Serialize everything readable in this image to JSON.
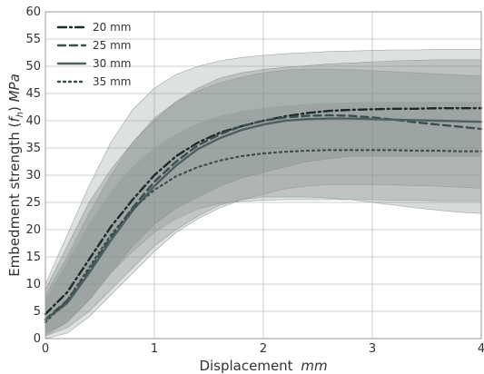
{
  "chart_data": {
    "type": "line",
    "xlabel_text": "Displacement ",
    "xlabel_unit": "mm",
    "ylabel_text": "Embedment strength (",
    "ylabel_sym": "f",
    "ylabel_sub": "h",
    "ylabel_mid": ") ",
    "ylabel_unit": "MPa",
    "xlim": [
      0,
      4
    ],
    "ylim": [
      0,
      60
    ],
    "xticks": [
      0,
      1,
      2,
      3,
      4
    ],
    "yticks": [
      0,
      5,
      10,
      15,
      20,
      25,
      30,
      35,
      40,
      45,
      50,
      55,
      60
    ],
    "grid": true,
    "legend_position": "top-left",
    "series": [
      {
        "name": "20 mm",
        "color": "#1f2a28",
        "dash": "dashdot",
        "x": [
          0,
          0.2,
          0.4,
          0.6,
          0.8,
          1.0,
          1.2,
          1.4,
          1.6,
          1.8,
          2.0,
          2.2,
          2.4,
          2.6,
          2.8,
          3.0,
          3.2,
          3.4,
          3.6,
          3.8,
          4.0
        ],
        "y": [
          4.5,
          8.5,
          14.5,
          20.5,
          25.5,
          30.0,
          33.5,
          36.0,
          37.8,
          39.0,
          40.0,
          40.8,
          41.4,
          41.8,
          42.0,
          42.1,
          42.2,
          42.2,
          42.3,
          42.3,
          42.3
        ],
        "upper": [
          9,
          17,
          25,
          31,
          36,
          40,
          43.5,
          46,
          47.8,
          48.8,
          49.4,
          49.8,
          50.1,
          50.4,
          50.6,
          50.8,
          51.0,
          51.1,
          51.2,
          51.2,
          51.2
        ],
        "lower": [
          1,
          3,
          7,
          12,
          17,
          21,
          24,
          26,
          28,
          29.5,
          30.5,
          31.5,
          32.5,
          33,
          33.5,
          33.5,
          33.5,
          33.5,
          33.5,
          33.5,
          33.5
        ]
      },
      {
        "name": "25 mm",
        "color": "#3b4f4c",
        "dash": "dashed",
        "x": [
          0,
          0.2,
          0.4,
          0.6,
          0.8,
          1.0,
          1.2,
          1.4,
          1.6,
          1.8,
          2.0,
          2.2,
          2.4,
          2.6,
          2.8,
          3.0,
          3.2,
          3.4,
          3.6,
          3.8,
          4.0
        ],
        "y": [
          3.5,
          7.0,
          12.5,
          18.5,
          24.0,
          28.8,
          32.5,
          35.5,
          37.5,
          39.0,
          40.0,
          40.6,
          40.9,
          41.0,
          40.9,
          40.6,
          40.2,
          39.7,
          39.3,
          38.9,
          38.5
        ],
        "upper": [
          8,
          15,
          23,
          30,
          36,
          40.5,
          43.5,
          45.5,
          47,
          48,
          48.8,
          49.3,
          49.5,
          49.5,
          49.4,
          49.2,
          49.0,
          48.8,
          48.6,
          48.4,
          48.2
        ],
        "lower": [
          0.5,
          2,
          5,
          9,
          13,
          17,
          20,
          22.5,
          24.5,
          25.5,
          26,
          26,
          26,
          25.8,
          25.5,
          25,
          24.5,
          24,
          23.6,
          23.2,
          23
        ]
      },
      {
        "name": "30 mm",
        "color": "#4e605d",
        "dash": "solid",
        "x": [
          0,
          0.2,
          0.4,
          0.6,
          0.8,
          1.0,
          1.2,
          1.4,
          1.6,
          1.8,
          2.0,
          2.2,
          2.4,
          2.6,
          2.8,
          3.0,
          3.2,
          3.4,
          3.6,
          3.8,
          4.0
        ],
        "y": [
          3.5,
          6.5,
          12.0,
          18.0,
          23.5,
          28.0,
          31.8,
          34.8,
          36.8,
          38.3,
          39.3,
          40.0,
          40.3,
          40.4,
          40.4,
          40.3,
          40.2,
          40.1,
          40.0,
          39.9,
          39.8
        ],
        "upper": [
          10,
          19,
          28,
          36,
          42,
          46,
          48.5,
          50,
          51,
          51.6,
          52,
          52.3,
          52.5,
          52.7,
          52.8,
          52.9,
          53,
          53,
          53.1,
          53.1,
          53.1
        ],
        "lower": [
          0,
          1,
          4,
          8,
          12,
          16,
          19.5,
          22,
          24,
          25.5,
          26.5,
          27.5,
          28,
          28.3,
          28.3,
          28.3,
          28.2,
          28.1,
          28,
          27.8,
          27.6
        ]
      },
      {
        "name": "35 mm",
        "color": "#3c4d4a",
        "dash": "dotted",
        "x": [
          0,
          0.2,
          0.4,
          0.6,
          0.8,
          1.0,
          1.2,
          1.4,
          1.6,
          1.8,
          2.0,
          2.2,
          2.4,
          2.6,
          2.8,
          3.0,
          3.2,
          3.4,
          3.6,
          3.8,
          4.0
        ],
        "y": [
          3.0,
          7.0,
          13.0,
          19.0,
          23.8,
          27.3,
          29.8,
          31.5,
          32.7,
          33.5,
          34.0,
          34.3,
          34.5,
          34.6,
          34.6,
          34.6,
          34.6,
          34.5,
          34.5,
          34.4,
          34.4
        ],
        "upper": [
          7,
          14,
          21,
          27,
          31.5,
          35,
          37.5,
          39.5,
          40.8,
          41.7,
          42.3,
          42.7,
          43,
          43.2,
          43.3,
          43.4,
          43.4,
          43.4,
          43.4,
          43.4,
          43.4
        ],
        "lower": [
          0.5,
          3,
          7,
          12,
          16,
          19.5,
          22,
          23.8,
          24.8,
          25.2,
          25.4,
          25.5,
          25.5,
          25.5,
          25.5,
          25.5,
          25.4,
          25.4,
          25.3,
          25.3,
          25.3
        ]
      }
    ]
  }
}
